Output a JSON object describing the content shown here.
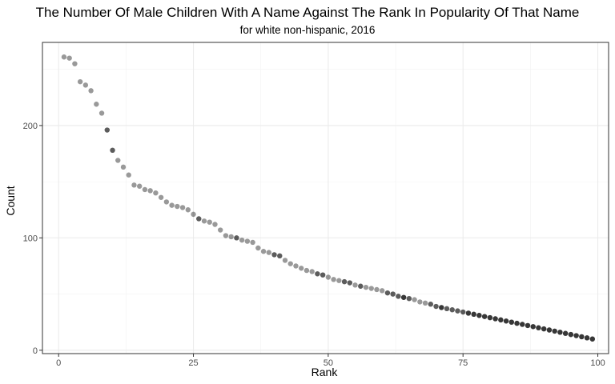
{
  "chart_data": {
    "type": "scatter",
    "title": "The Number Of Male Children With A Name Against The Rank In Popularity Of That Name",
    "subtitle": "for white non-hispanic, 2016",
    "xlabel": "Rank",
    "ylabel": "Count",
    "xlim": [
      -3,
      102
    ],
    "ylim": [
      -3,
      274
    ],
    "x_ticks": [
      0,
      25,
      50,
      75,
      100
    ],
    "y_ticks": [
      0,
      100,
      200
    ],
    "grid": true,
    "point_color": "#000000",
    "point_alpha": 0.4,
    "x": [
      1,
      2,
      3,
      4,
      5,
      6,
      7,
      8,
      9,
      10,
      11,
      12,
      13,
      14,
      15,
      16,
      17,
      18,
      19,
      20,
      21,
      22,
      23,
      24,
      25,
      26,
      27,
      28,
      29,
      30,
      31,
      32,
      33,
      34,
      35,
      36,
      37,
      38,
      39,
      40,
      41,
      42,
      43,
      44,
      45,
      46,
      47,
      48,
      49,
      50,
      51,
      52,
      53,
      54,
      55,
      56,
      57,
      58,
      59,
      60,
      61,
      62,
      63,
      64,
      65,
      66,
      67,
      68,
      69,
      70,
      71,
      72,
      73,
      74,
      75,
      76,
      77,
      78,
      79,
      80,
      81,
      82,
      83,
      84,
      85,
      86,
      87,
      88,
      89,
      90,
      91,
      92,
      93,
      94,
      95,
      96,
      97,
      98,
      99
    ],
    "y": [
      261,
      260,
      255,
      239,
      236,
      231,
      219,
      211,
      196,
      178,
      169,
      163,
      156,
      147,
      146,
      143,
      142,
      140,
      136,
      132,
      129,
      128,
      127,
      125,
      121,
      117,
      115,
      114,
      112,
      107,
      102,
      101,
      100,
      98,
      97,
      96,
      91,
      88,
      87,
      85,
      84,
      80,
      77,
      75,
      73,
      71,
      70,
      68,
      67,
      65,
      63,
      62,
      61,
      60,
      58,
      57,
      56,
      55,
      54,
      53,
      51,
      50,
      48,
      47,
      46,
      45,
      43,
      42,
      41,
      39,
      38,
      37,
      36,
      35,
      34,
      33,
      32,
      31,
      30,
      29,
      28,
      27,
      26,
      25,
      24,
      23,
      22,
      21,
      20,
      19,
      18,
      17,
      16,
      15,
      14,
      13,
      12,
      11,
      10
    ],
    "counts": [
      1,
      1,
      1,
      1,
      1,
      1,
      1,
      1,
      2,
      2,
      1,
      1,
      1,
      1,
      1,
      1,
      1,
      1,
      1,
      1,
      1,
      1,
      1,
      1,
      1,
      2,
      1,
      1,
      1,
      1,
      1,
      1,
      2,
      1,
      1,
      1,
      1,
      1,
      1,
      2,
      2,
      1,
      1,
      1,
      1,
      1,
      1,
      2,
      2,
      1,
      1,
      1,
      2,
      2,
      1,
      2,
      1,
      1,
      1,
      1,
      2,
      2,
      2,
      3,
      2,
      1,
      1,
      1,
      2,
      2,
      3,
      2,
      2,
      2,
      2,
      3,
      3,
      3,
      3,
      3,
      3,
      3,
      3,
      3,
      3,
      3,
      3,
      3,
      3,
      3,
      3,
      3,
      3,
      3,
      3,
      3,
      3,
      3,
      3
    ]
  }
}
